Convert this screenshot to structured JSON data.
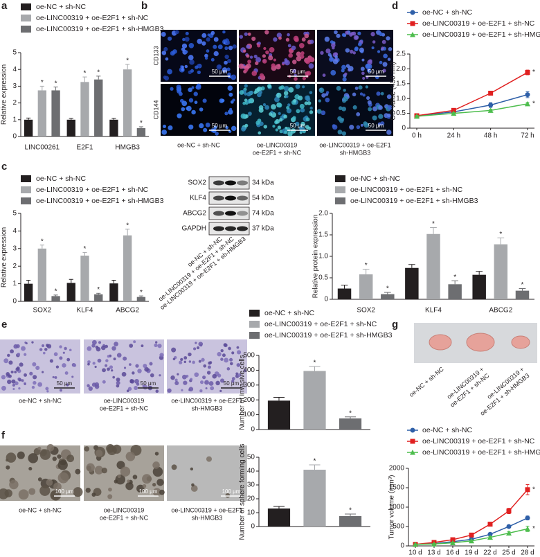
{
  "panel_labels": [
    "a",
    "b",
    "c",
    "d",
    "e",
    "f",
    "g"
  ],
  "immunofluorescence": {
    "markers": [
      "CD133",
      "CD144"
    ],
    "scale_bar": "50 μm",
    "captions": [
      [
        "oe-NC + sh-NC"
      ],
      [
        "oe-LINC00319",
        "oe-E2F1 + sh-NC"
      ],
      [
        "oe-LINC00319 + oe-E2F1",
        "sh-HMGB3"
      ]
    ]
  },
  "western_blot": {
    "proteins": [
      "SOX2",
      "KLF4",
      "ABCG2",
      "GAPDH"
    ],
    "sizes": [
      "34 kDa",
      "54 kDa",
      "74 kDa",
      "37 kDa"
    ],
    "lanes": [
      "oe-NC + sh-NC",
      "oe-LINC00319 + oe-E2F1 + sh-NC",
      "oe-LINC00319 + oe-E2F1 + sh-HMGB3"
    ]
  },
  "invasion": {
    "scale_bar": "50 μm",
    "captions": [
      [
        "oe-NC + sh-NC"
      ],
      [
        "oe-LINC00319",
        "oe-E2F1 + sh-NC"
      ],
      [
        "oe-LINC00319 + oe-E2F1",
        "sh-HMGB3"
      ]
    ]
  },
  "sphere": {
    "scale_bar": "100 μm",
    "captions": [
      [
        "oe-NC + sh-NC"
      ],
      [
        "oe-LINC00319",
        "oe-E2F1 + sh-NC"
      ],
      [
        "oe-LINC00319 + oe-E2F1",
        "sh-HMGB3"
      ]
    ]
  },
  "tumor_photo": {
    "labels": [
      [
        "oe-NC + sh-NC"
      ],
      [
        "oe-LINC00319 +",
        "oe-E2F1 + sh-NC"
      ],
      [
        "oe-LINC00319 +",
        "oe-E2F1 + sh-HMGB3"
      ]
    ]
  },
  "chart_data": [
    {
      "type": "bar",
      "ylabel": "Relative expression",
      "categories": [
        "LINC00261",
        "E2F1",
        "HMGB3"
      ],
      "ylim": [
        0,
        5
      ],
      "yticks": [
        0,
        1,
        2,
        3,
        4,
        5
      ],
      "series": [
        {
          "name": "oe-NC + sh-NC",
          "color": "#231f20",
          "values": [
            1,
            1,
            1
          ],
          "errors": [
            0.1,
            0.08,
            0.08
          ],
          "annotations": [
            null,
            null,
            null
          ]
        },
        {
          "name": "oe-LINC00319 + oe-E2F1 + sh-NC",
          "color": "#a7a9ac",
          "values": [
            2.75,
            3.25,
            4.0
          ],
          "errors": [
            0.25,
            0.3,
            0.3
          ],
          "annotations": [
            "*",
            "*",
            "*"
          ]
        },
        {
          "name": "oe-LINC00319 + oe-E2F1 + sh-HMGB3",
          "color": "#6d6e71",
          "values": [
            2.75,
            3.4,
            0.5
          ],
          "errors": [
            0.2,
            0.2,
            0.08
          ],
          "annotations": [
            "*",
            "*",
            "*"
          ]
        }
      ]
    },
    {
      "type": "line",
      "ylabel": "OD value (450 nm)",
      "categories": [
        "0 h",
        "24 h",
        "48 h",
        "72 h"
      ],
      "ylim": [
        0,
        2.5
      ],
      "yticks": [
        0,
        0.5,
        {
          "value": 1.0,
          "label": "1.0"
        },
        1.5,
        {
          "value": 2.0,
          "label": "2.0"
        },
        2.5
      ],
      "series": [
        {
          "name": "oe-NC + sh-NC",
          "color": "#2e5fa8",
          "marker": "circle",
          "values": [
            0.42,
            0.55,
            0.78,
            1.13
          ],
          "errors": [
            0.03,
            0.04,
            0.08,
            0.1
          ],
          "annotations": [
            null,
            null,
            null,
            null
          ]
        },
        {
          "name": "oe-LINC00319 + oe-E2F1 + sh-NC",
          "color": "#e02020",
          "marker": "square",
          "values": [
            0.42,
            0.6,
            1.18,
            1.88
          ],
          "errors": [
            0.03,
            0.04,
            0.07,
            0.08
          ],
          "annotations": [
            null,
            null,
            null,
            "*"
          ]
        },
        {
          "name": "oe-LINC00319 + oe-E2F1 + sh-HMGB3",
          "color": "#4dbd4d",
          "marker": "triangle",
          "values": [
            0.4,
            0.5,
            0.6,
            0.82
          ],
          "errors": [
            0.03,
            0.03,
            0.04,
            0.05
          ],
          "annotations": [
            null,
            null,
            null,
            "*"
          ]
        }
      ]
    },
    {
      "type": "bar",
      "ylabel": "Relative expression",
      "categories": [
        "SOX2",
        "KLF4",
        "ABCG2"
      ],
      "ylim": [
        0,
        5
      ],
      "yticks": [
        0,
        1,
        2,
        3,
        4,
        5
      ],
      "series": [
        {
          "name": "oe-NC + sh-NC",
          "color": "#231f20",
          "values": [
            1,
            1.05,
            1.02
          ],
          "errors": [
            0.2,
            0.2,
            0.18
          ],
          "annotations": [
            null,
            null,
            null
          ]
        },
        {
          "name": "oe-LINC00319 + oe-E2F1 + sh-NC",
          "color": "#a7a9ac",
          "values": [
            3.0,
            2.6,
            3.75
          ],
          "errors": [
            0.2,
            0.18,
            0.35
          ],
          "annotations": [
            "*",
            "*",
            "*"
          ]
        },
        {
          "name": "oe-LINC00319 + oe-E2F1 + sh-HMGB3",
          "color": "#6d6e71",
          "values": [
            0.3,
            0.4,
            0.25
          ],
          "errors": [
            0.06,
            0.06,
            0.06
          ],
          "annotations": [
            "*",
            "*",
            "*"
          ]
        }
      ]
    },
    {
      "type": "bar",
      "ylabel": "Relative protein expression",
      "categories": [
        "SOX2",
        "KLF4",
        "ABCG2"
      ],
      "ylim": [
        0,
        2.0
      ],
      "yticks": [
        0,
        0.5,
        {
          "value": 1.0,
          "label": "1.0"
        },
        1.5,
        {
          "value": 2.0,
          "label": "2.0"
        }
      ],
      "series": [
        {
          "name": "oe-NC + sh-NC",
          "color": "#231f20",
          "values": [
            0.25,
            0.73,
            0.57
          ],
          "errors": [
            0.08,
            0.08,
            0.08
          ],
          "annotations": [
            null,
            null,
            null
          ]
        },
        {
          "name": "oe-LINC00319 + oe-E2F1 + sh-NC",
          "color": "#a7a9ac",
          "values": [
            0.58,
            1.52,
            1.28
          ],
          "errors": [
            0.12,
            0.15,
            0.15
          ],
          "annotations": [
            "*",
            "*",
            "*"
          ]
        },
        {
          "name": "oe-LINC00319 + oe-E2F1 + sh-HMGB3",
          "color": "#6d6e71",
          "values": [
            0.12,
            0.35,
            0.2
          ],
          "errors": [
            0.04,
            0.08,
            0.05
          ],
          "annotations": [
            "*",
            "*",
            "*"
          ]
        }
      ]
    },
    {
      "type": "bar",
      "ylabel": "Number of invasive cells",
      "categories": [
        null
      ],
      "ylim": [
        0,
        500
      ],
      "yticks": [
        0,
        100,
        200,
        300,
        400,
        500
      ],
      "series": [
        {
          "name": "oe-NC + sh-NC",
          "color": "#231f20",
          "values": [
            195
          ],
          "errors": [
            22
          ],
          "annotations": [
            null
          ]
        },
        {
          "name": "oe-LINC00319 + oe-E2F1 + sh-NC",
          "color": "#a7a9ac",
          "values": [
            395
          ],
          "errors": [
            30
          ],
          "annotations": [
            "*"
          ]
        },
        {
          "name": "oe-LINC00319 + oe-E2F1 + sh-HMGB3",
          "color": "#6d6e71",
          "values": [
            75
          ],
          "errors": [
            10
          ],
          "annotations": [
            "*"
          ]
        }
      ]
    },
    {
      "type": "bar",
      "ylabel": "Number of sphere forming cells",
      "categories": [
        null
      ],
      "ylim": [
        0,
        50
      ],
      "yticks": [
        0,
        10,
        20,
        30,
        40,
        50
      ],
      "series": [
        {
          "color": "#231f20",
          "values": [
            13
          ],
          "errors": [
            1.5
          ],
          "annotations": [
            null
          ]
        },
        {
          "color": "#a7a9ac",
          "values": [
            41
          ],
          "errors": [
            3.5
          ],
          "annotations": [
            "*"
          ]
        },
        {
          "color": "#6d6e71",
          "values": [
            7.5
          ],
          "errors": [
            1.5
          ],
          "annotations": [
            "*"
          ]
        }
      ]
    },
    {
      "type": "line",
      "ylabel": "Tumor volume (mm³)",
      "categories": [
        "10 d",
        "13 d",
        "16 d",
        "19 d",
        "22 d",
        "25 d",
        "28 d"
      ],
      "ylim": [
        0,
        2000
      ],
      "yticks": [
        0,
        500,
        1000,
        1500,
        2000
      ],
      "series": [
        {
          "name": "oe-NC + sh-NC",
          "color": "#2e5fa8",
          "marker": "circle",
          "values": [
            40,
            60,
            110,
            170,
            300,
            500,
            720
          ],
          "errors": [
            10,
            15,
            20,
            25,
            30,
            35,
            50
          ],
          "annotations": [
            null,
            null,
            null,
            null,
            null,
            null,
            null
          ]
        },
        {
          "name": "oe-LINC00319 + oe-E2F1 + sh-NC",
          "color": "#e02020",
          "marker": "square",
          "values": [
            40,
            90,
            160,
            280,
            560,
            900,
            1450
          ],
          "errors": [
            10,
            15,
            20,
            30,
            50,
            70,
            130
          ],
          "annotations": [
            null,
            null,
            null,
            null,
            null,
            null,
            "*"
          ]
        },
        {
          "name": "oe-LINC00319 + oe-E2F1 + sh-HMGB3",
          "color": "#4dbd4d",
          "marker": "triangle",
          "values": [
            40,
            50,
            80,
            130,
            220,
            330,
            440
          ],
          "errors": [
            10,
            10,
            15,
            20,
            25,
            40,
            70
          ],
          "annotations": [
            null,
            null,
            null,
            null,
            null,
            null,
            "*"
          ]
        }
      ]
    }
  ]
}
